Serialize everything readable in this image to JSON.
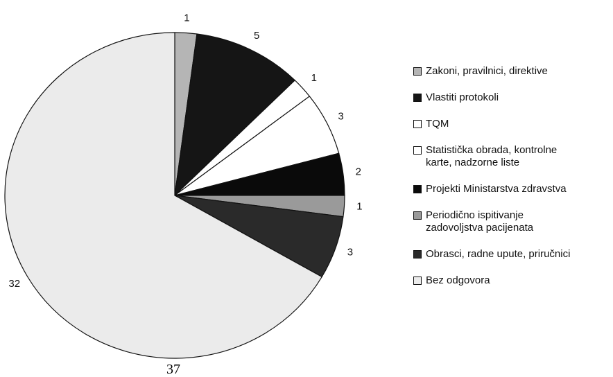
{
  "chart_data": {
    "type": "pie",
    "categories": [
      "Zakoni, pravilnici, direktive",
      "Vlastiti protokoli",
      "TQM",
      "Statistička obrada, kontrolne\nkarte, nadzorne liste",
      "Projekti Ministarstva zdravstva",
      "Periodično ispitivanje\nzadovoljstva pacijenata",
      "Obrasci, radne upute, priručnici",
      "Bez odgovora"
    ],
    "values": [
      1,
      5,
      1,
      3,
      2,
      1,
      3,
      32
    ],
    "colors": [
      "#b5b5b5",
      "#151515",
      "#ffffff",
      "#ffffff",
      "#0a0a0a",
      "#9a9a9a",
      "#2a2a2a",
      "#ebebeb"
    ],
    "legend": "right"
  },
  "page_number": "37"
}
